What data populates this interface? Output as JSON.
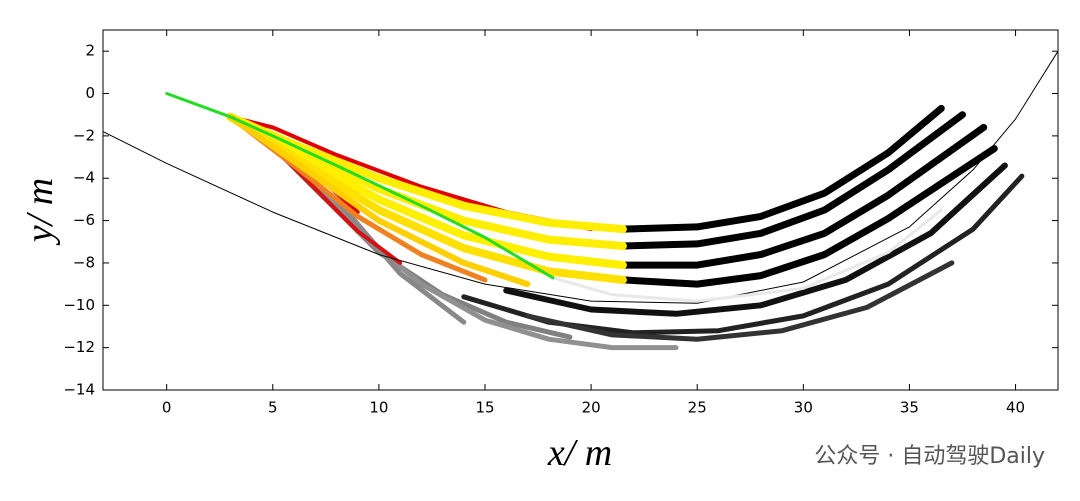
{
  "chart_data": {
    "type": "line",
    "xlabel": "x/ m",
    "ylabel": "y/ m",
    "watermark": "公众号 · 自动驾驶Daily",
    "xlim": [
      -3,
      42
    ],
    "ylim": [
      -14,
      3
    ],
    "xticks": [
      0,
      5,
      10,
      15,
      20,
      25,
      30,
      35,
      40
    ],
    "yticks": [
      2,
      0,
      {
        "value": -2,
        "label": "−2"
      },
      {
        "value": -4,
        "label": "−4"
      },
      {
        "value": -6,
        "label": "−6"
      },
      {
        "value": -8,
        "label": "−8"
      },
      {
        "value": -10,
        "label": "−10"
      },
      {
        "value": -12,
        "label": "−12"
      },
      {
        "value": -14,
        "label": "−14"
      }
    ],
    "series": [
      {
        "color": "#808080",
        "line_width": 5,
        "x": [
          4,
          7,
          10,
          13,
          16,
          19
        ],
        "values": [
          -1.5,
          -4.5,
          -7.5,
          -9.5,
          -10.8,
          -11.5
        ]
      },
      {
        "color": "#909090",
        "line_width": 5,
        "x": [
          6,
          9,
          12,
          15,
          18,
          21,
          24
        ],
        "values": [
          -3,
          -6.5,
          -9,
          -10.7,
          -11.6,
          -12,
          -12
        ]
      },
      {
        "color": "#888888",
        "line_width": 5,
        "x": [
          8,
          11,
          14
        ],
        "values": [
          -5,
          -8.5,
          -10.8
        ]
      },
      {
        "color": "#000000",
        "line_width": 7,
        "x": [
          21.5,
          25,
          28,
          31,
          34,
          36.5
        ],
        "values": [
          -6.4,
          -6.3,
          -5.8,
          -4.7,
          -2.8,
          -0.7
        ]
      },
      {
        "color": "#000000",
        "line_width": 7,
        "x": [
          21.5,
          25,
          28,
          31,
          34,
          37.5
        ],
        "values": [
          -7.2,
          -7.1,
          -6.6,
          -5.5,
          -3.6,
          -1
        ]
      },
      {
        "color": "#000000",
        "line_width": 7,
        "x": [
          21.5,
          25,
          28,
          31,
          34,
          38.5
        ],
        "values": [
          -8.1,
          -8.1,
          -7.6,
          -6.6,
          -4.8,
          -1.6
        ]
      },
      {
        "color": "#000000",
        "line_width": 7,
        "x": [
          21.5,
          25,
          28,
          31,
          34,
          39
        ],
        "values": [
          -8.8,
          -9,
          -8.6,
          -7.6,
          -5.9,
          -2.6
        ]
      },
      {
        "color": "#111111",
        "line_width": 6,
        "x": [
          16,
          20,
          24,
          28,
          32,
          36,
          39.5
        ],
        "values": [
          -9.3,
          -10.2,
          -10.4,
          -10,
          -8.8,
          -6.6,
          -3.4
        ]
      },
      {
        "color": "#222222",
        "line_width": 5,
        "x": [
          14,
          18,
          22,
          26,
          30,
          34,
          38,
          40.3
        ],
        "values": [
          -9.6,
          -10.8,
          -11.3,
          -11.2,
          -10.5,
          -9,
          -6.4,
          -3.9
        ]
      },
      {
        "color": "#333333",
        "line_width": 5,
        "x": [
          17,
          21,
          25,
          29,
          33,
          37
        ],
        "values": [
          -10.5,
          -11.4,
          -11.6,
          -11.2,
          -10.1,
          -8
        ]
      },
      {
        "color": "#e00000",
        "line_width": 4,
        "x": [
          3,
          5,
          8,
          12,
          16,
          20
        ],
        "values": [
          -1.1,
          -1.6,
          -2.9,
          -4.4,
          -5.6,
          -6.4
        ]
      },
      {
        "color": "#e00000",
        "line_width": 4,
        "x": [
          3,
          5,
          7,
          9
        ],
        "values": [
          -1.1,
          -2.2,
          -3.8,
          -5.6
        ]
      },
      {
        "color": "#d81010",
        "line_width": 4,
        "x": [
          3,
          5,
          7,
          9,
          11
        ],
        "values": [
          -1.1,
          -2.5,
          -4.5,
          -6.5,
          -8
        ]
      },
      {
        "color": "#f08020",
        "line_width": 5,
        "x": [
          3,
          6,
          9,
          12,
          15
        ],
        "values": [
          -1.1,
          -3.4,
          -5.8,
          -7.6,
          -8.8
        ]
      },
      {
        "color": "#ffee00",
        "line_width": 8,
        "x": [
          3,
          6,
          10,
          14,
          18,
          21.5
        ],
        "values": [
          -1.1,
          -2.4,
          -4,
          -5.3,
          -6.1,
          -6.4
        ]
      },
      {
        "color": "#ffee00",
        "line_width": 8,
        "x": [
          3,
          6,
          10,
          14,
          18,
          21.5
        ],
        "values": [
          -1.1,
          -2.6,
          -4.5,
          -6,
          -6.9,
          -7.2
        ]
      },
      {
        "color": "#fff000",
        "line_width": 8,
        "x": [
          3,
          6,
          10,
          14,
          18,
          21.5
        ],
        "values": [
          -1.1,
          -2.8,
          -5,
          -6.7,
          -7.7,
          -8.1
        ]
      },
      {
        "color": "#ffe000",
        "line_width": 8,
        "x": [
          3,
          6,
          10,
          14,
          18,
          21.5
        ],
        "values": [
          -1.1,
          -3,
          -5.5,
          -7.3,
          -8.4,
          -8.8
        ]
      },
      {
        "color": "#ffd000",
        "line_width": 6,
        "x": [
          3,
          6,
          10,
          14,
          17
        ],
        "values": [
          -1.1,
          -3.2,
          -6,
          -8,
          -9
        ]
      },
      {
        "color": "#000000",
        "line_width": 1,
        "x": [
          -3,
          0,
          5,
          10,
          15,
          20,
          25,
          30,
          35,
          38,
          40,
          42
        ],
        "values": [
          -1.8,
          -3.3,
          -5.6,
          -7.6,
          -9,
          -9.8,
          -9.9,
          -8.9,
          -6.3,
          -3.6,
          -1.2,
          2
        ]
      },
      {
        "color": "#e8e8e8",
        "line_width": 3,
        "x": [
          18.2,
          21,
          25,
          30,
          34,
          36.5
        ],
        "values": [
          -8.7,
          -9.5,
          -9.8,
          -9.2,
          -7.5,
          -5.5
        ]
      },
      {
        "color": "#22dd22",
        "line_width": 3,
        "x": [
          0,
          3,
          5,
          8,
          12,
          15,
          18.2
        ],
        "values": [
          0,
          -1.1,
          -2,
          -3.4,
          -5.3,
          -6.8,
          -8.7
        ]
      }
    ]
  }
}
